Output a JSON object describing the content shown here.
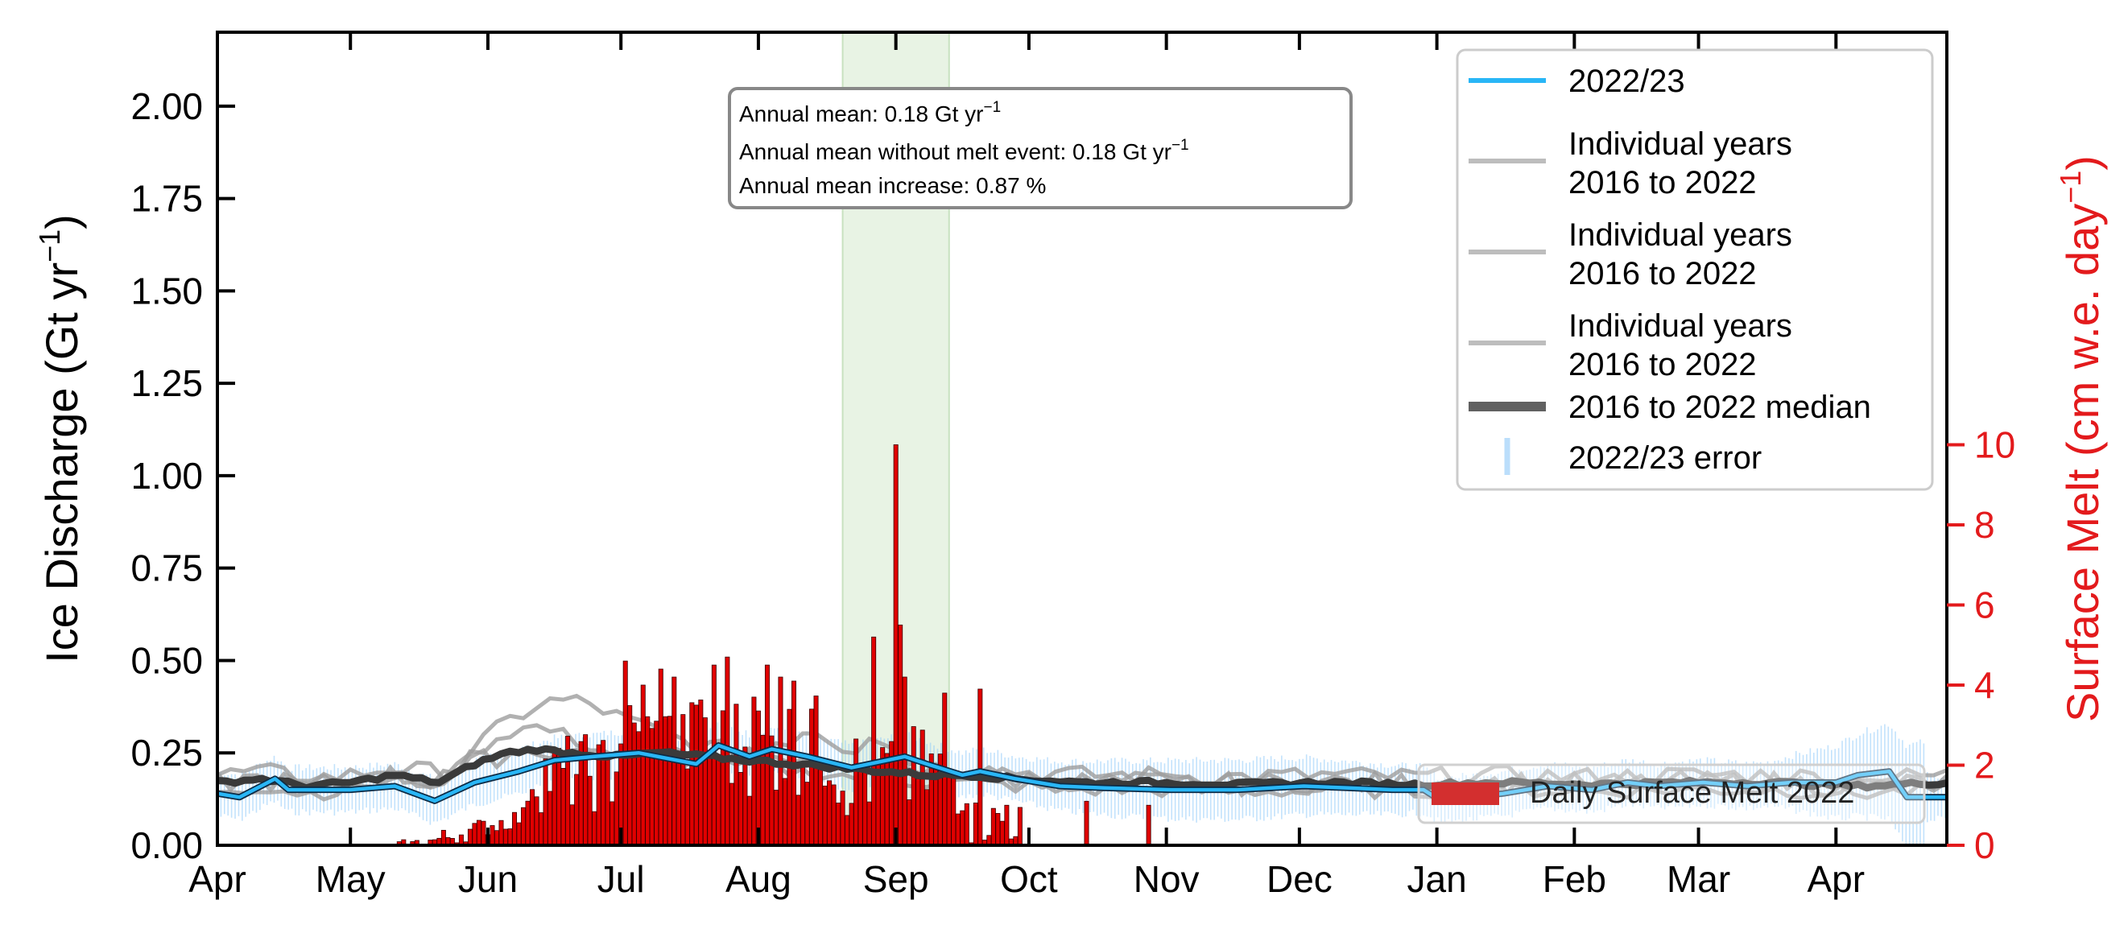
{
  "chart_data": {
    "type": "line",
    "y_left": {
      "label": "Ice Discharge (Gt yr",
      "label_sup": "−1",
      "label_close": ")",
      "ylim": [
        0,
        2.2
      ],
      "ticks": [
        "0.00",
        "0.25",
        "0.50",
        "0.75",
        "1.00",
        "1.25",
        "1.50",
        "1.75",
        "2.00"
      ]
    },
    "y_right": {
      "label": "Surface Melt (cm w.e. day",
      "label_sup": "−1",
      "label_close": ")",
      "ylim": [
        0,
        20.3
      ],
      "ticks": [
        "0",
        "2",
        "4",
        "6",
        "8",
        "10"
      ],
      "color": "#e31a1c"
    },
    "x_axis": {
      "ticks": [
        {
          "label": "Apr",
          "day": 0
        },
        {
          "label": "May",
          "day": 30
        },
        {
          "label": "Jun",
          "day": 61
        },
        {
          "label": "Jul",
          "day": 91
        },
        {
          "label": "Aug",
          "day": 122
        },
        {
          "label": "Sep",
          "day": 153
        },
        {
          "label": "Oct",
          "day": 183
        },
        {
          "label": "Nov",
          "day": 214
        },
        {
          "label": "Dec",
          "day": 244
        },
        {
          "label": "Jan",
          "day": 275
        },
        {
          "label": "Feb",
          "day": 306
        },
        {
          "label": "Mar",
          "day": 334
        },
        {
          "label": "Apr",
          "day": 365
        }
      ],
      "xlim": [
        0,
        390
      ]
    },
    "shaded_window": {
      "start_day": 141,
      "end_day": 165,
      "color": "#d9ead3"
    },
    "annotation": {
      "line1": "Annual mean: 0.18  Gt yr",
      "line1_sup": "−1",
      "line2": "Annual mean without melt event: 0.18  Gt yr",
      "line2_sup": "−1",
      "line3": "Annual mean increase: 0.87 %"
    },
    "legend": {
      "position": "upper right",
      "entries": [
        {
          "label": "2022/23",
          "label2": "",
          "color": "#29b6f6",
          "kind": "line"
        },
        {
          "label": "Individual years",
          "label2": "2016 to 2022",
          "color": "#bdbdbd",
          "kind": "line"
        },
        {
          "label": "Individual years",
          "label2": "2016 to 2022",
          "color": "#bdbdbd",
          "kind": "line"
        },
        {
          "label": "Individual years",
          "label2": "2016 to 2022",
          "color": "#bdbdbd",
          "kind": "line"
        },
        {
          "label": "2016 to 2022 median",
          "label2": "",
          "color": "#616161",
          "kind": "thick"
        },
        {
          "label": "2022/23 error",
          "label2": "",
          "color": "#bbdefb",
          "kind": "errbar"
        }
      ]
    },
    "melt_legend": {
      "label": "Daily Surface Melt 2022",
      "color": "#d32f2f"
    },
    "series": [
      {
        "name": "2022/23",
        "color": "#29b6f6",
        "x": [
          0,
          5,
          13,
          16,
          30,
          40,
          49,
          58,
          68,
          76,
          85,
          95,
          108,
          113,
          120,
          125,
          133,
          143,
          155,
          160,
          168,
          172,
          180,
          190,
          200,
          215,
          230,
          245,
          255,
          265,
          272,
          276,
          290,
          300,
          310,
          318,
          325,
          335,
          345,
          355,
          365,
          370,
          377,
          381,
          385,
          390
        ],
        "y": [
          0.14,
          0.13,
          0.18,
          0.15,
          0.15,
          0.16,
          0.12,
          0.17,
          0.2,
          0.23,
          0.24,
          0.25,
          0.22,
          0.27,
          0.24,
          0.26,
          0.24,
          0.21,
          0.24,
          0.22,
          0.19,
          0.2,
          0.18,
          0.16,
          0.155,
          0.15,
          0.15,
          0.16,
          0.155,
          0.15,
          0.15,
          0.12,
          0.14,
          0.16,
          0.15,
          0.17,
          0.16,
          0.17,
          0.16,
          0.17,
          0.17,
          0.19,
          0.2,
          0.13,
          0.13,
          0.13
        ]
      },
      {
        "name": "2016 to 2022 median",
        "color": "#3a3a3a",
        "x": [
          0,
          10,
          20,
          30,
          40,
          50,
          58,
          65,
          72,
          80,
          90,
          100,
          110,
          120,
          130,
          140,
          150,
          160,
          170,
          180,
          195,
          210,
          230,
          250,
          270,
          290,
          310,
          330,
          350,
          370,
          390
        ],
        "y": [
          0.17,
          0.18,
          0.16,
          0.17,
          0.19,
          0.17,
          0.22,
          0.25,
          0.26,
          0.25,
          0.24,
          0.25,
          0.24,
          0.23,
          0.22,
          0.21,
          0.2,
          0.19,
          0.19,
          0.18,
          0.17,
          0.17,
          0.165,
          0.17,
          0.165,
          0.17,
          0.165,
          0.17,
          0.17,
          0.16,
          0.17
        ]
      }
    ]
  }
}
